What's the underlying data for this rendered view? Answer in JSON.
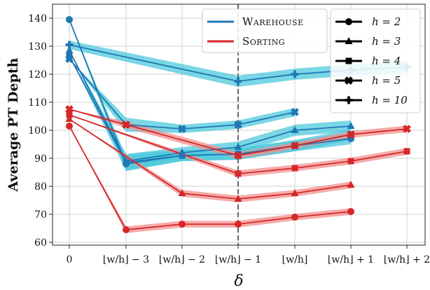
{
  "chart_data": {
    "type": "line",
    "xlabel": "δ",
    "ylabel": "Average PT Depth",
    "categories": [
      "0",
      "⌊w/h⌋ − 3",
      "⌊w/h⌋ − 2",
      "⌊w/h⌋ − 1",
      "⌊w/h⌋",
      "⌊w/h⌋ + 1",
      "⌊w/h⌋ + 2"
    ],
    "ylim": [
      59,
      145
    ],
    "yticks": [
      60,
      70,
      80,
      90,
      100,
      110,
      120,
      130,
      140
    ],
    "grid": true,
    "reference_line_category": "⌊w/h⌋ − 1",
    "legend_env": [
      {
        "name": "Warehouse",
        "color": "#1f77b4"
      },
      {
        "name": "Sorting",
        "color": "#d62728"
      }
    ],
    "legend_h": [
      {
        "name": "h = 2",
        "marker": "circle"
      },
      {
        "name": "h = 3",
        "marker": "triangle"
      },
      {
        "name": "h = 4",
        "marker": "square"
      },
      {
        "name": "h = 5",
        "marker": "x"
      },
      {
        "name": "h = 10",
        "marker": "plus"
      }
    ],
    "series": [
      {
        "env": "Warehouse",
        "h": 2,
        "marker": "circle",
        "color": "#1f77b4",
        "band": "#4ec9dc",
        "values": [
          139.5,
          88.0,
          91.0,
          91.5,
          94.5,
          97.0,
          null
        ],
        "err": [
          0,
          2.5,
          2.0,
          2.0,
          2.0,
          2.0,
          0
        ]
      },
      {
        "env": "Warehouse",
        "h": 3,
        "marker": "triangle",
        "color": "#1f77b4",
        "band": "#4ec9dc",
        "values": [
          128.5,
          89.0,
          92.0,
          94.0,
          100.0,
          101.5,
          null
        ],
        "err": [
          0,
          2.5,
          2.0,
          2.0,
          2.0,
          2.0,
          0
        ]
      },
      {
        "env": "Warehouse",
        "h": 4,
        "marker": "square",
        "color": "#1f77b4",
        "band": "#4ec9dc",
        "values": [
          126.5,
          88.5,
          91.0,
          91.5,
          94.5,
          98.5,
          null
        ],
        "err": [
          0,
          3.0,
          2.0,
          2.0,
          2.0,
          2.0,
          0
        ]
      },
      {
        "env": "Warehouse",
        "h": 5,
        "marker": "x",
        "color": "#1f77b4",
        "band": "#4ec9dc",
        "values": [
          125.5,
          102.0,
          100.5,
          102.0,
          106.5,
          null,
          null
        ],
        "err": [
          0,
          2.5,
          1.5,
          1.5,
          1.5,
          0,
          0
        ]
      },
      {
        "env": "Warehouse",
        "h": 10,
        "marker": "plus",
        "color": "#1f77b4",
        "band": "#4ec9dc",
        "values": [
          130.5,
          null,
          null,
          117.5,
          120.0,
          121.5,
          122.5
        ],
        "err": [
          1.5,
          0,
          0,
          2.0,
          2.0,
          2.0,
          2.0
        ]
      },
      {
        "env": "Sorting",
        "h": 2,
        "marker": "circle",
        "color": "#d62728",
        "band": "#f0908e",
        "values": [
          101.5,
          64.5,
          66.5,
          66.5,
          69.0,
          71.0,
          null
        ],
        "err": [
          0,
          1.2,
          1.2,
          1.2,
          1.2,
          1.2,
          0
        ]
      },
      {
        "env": "Sorting",
        "h": 3,
        "marker": "triangle",
        "color": "#d62728",
        "band": "#f0908e",
        "values": [
          104.0,
          null,
          77.5,
          75.5,
          77.5,
          80.5,
          null
        ],
        "err": [
          0,
          0,
          1.2,
          1.2,
          1.2,
          1.2,
          0
        ]
      },
      {
        "env": "Sorting",
        "h": 4,
        "marker": "square",
        "color": "#d62728",
        "band": "#f0908e",
        "values": [
          105.5,
          null,
          null,
          84.5,
          86.5,
          89.0,
          92.5
        ],
        "err": [
          0,
          0,
          0,
          1.2,
          1.2,
          1.2,
          1.2
        ]
      },
      {
        "env": "Sorting",
        "h": 5,
        "marker": "x",
        "color": "#d62728",
        "band": "#f0908e",
        "values": [
          107.5,
          102.0,
          null,
          91.0,
          94.5,
          98.5,
          100.5
        ],
        "err": [
          0,
          1.2,
          0,
          1.2,
          1.2,
          1.2,
          1.2
        ]
      }
    ]
  }
}
